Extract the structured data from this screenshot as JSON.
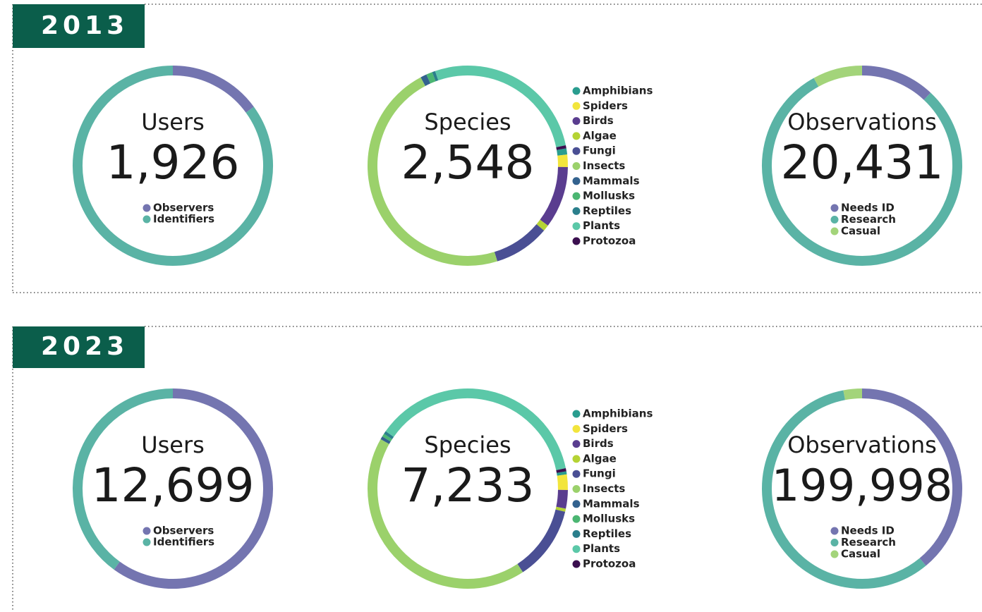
{
  "sections": [
    {
      "year": "2013"
    },
    {
      "year": "2023"
    }
  ],
  "chart_data": [
    {
      "type": "donut",
      "title": "Users",
      "total_label": "1,926",
      "categories": [
        "Observers",
        "Identifiers"
      ],
      "values": [
        15,
        85
      ],
      "colors": [
        "#7475b0",
        "#5ab3a5"
      ]
    },
    {
      "type": "donut",
      "title": "Species",
      "total_label": "2,548",
      "categories": [
        "Amphibians",
        "Spiders",
        "Birds",
        "Algae",
        "Fungi",
        "Insects",
        "Mammals",
        "Mollusks",
        "Reptiles",
        "Plants",
        "Protozoa"
      ],
      "values": [
        1,
        2,
        10,
        1,
        9,
        47,
        1,
        1,
        0.5,
        27,
        0.5
      ],
      "colors": [
        "#2a9d8f",
        "#f2e53c",
        "#5a3d8f",
        "#b5d334",
        "#4a4f94",
        "#9bd16b",
        "#33628e",
        "#4bb672",
        "#2b7f8c",
        "#5bc8a8",
        "#3b0f4f"
      ]
    },
    {
      "type": "donut",
      "title": "Observations",
      "total_label": "20,431",
      "categories": [
        "Needs ID",
        "Research",
        "Casual"
      ],
      "values": [
        12,
        80,
        8
      ],
      "colors": [
        "#7475b0",
        "#5ab3a5",
        "#a3d47a"
      ]
    },
    {
      "type": "donut",
      "title": "Users",
      "total_label": "12,699",
      "categories": [
        "Observers",
        "Identifiers"
      ],
      "values": [
        60,
        40
      ],
      "colors": [
        "#7475b0",
        "#5ab3a5"
      ]
    },
    {
      "type": "donut",
      "title": "Species",
      "total_label": "7,233",
      "categories": [
        "Amphibians",
        "Spiders",
        "Birds",
        "Algae",
        "Fungi",
        "Insects",
        "Mammals",
        "Mollusks",
        "Reptiles",
        "Plants",
        "Protozoa"
      ],
      "values": [
        0.5,
        2.5,
        3,
        0.5,
        12,
        42.5,
        0.5,
        0.5,
        0.5,
        37,
        0.5
      ],
      "colors": [
        "#2a9d8f",
        "#f2e53c",
        "#5a3d8f",
        "#b5d334",
        "#4a4f94",
        "#9bd16b",
        "#33628e",
        "#4bb672",
        "#2b7f8c",
        "#5bc8a8",
        "#3b0f4f"
      ]
    },
    {
      "type": "donut",
      "title": "Observations",
      "total_label": "199,998",
      "categories": [
        "Needs ID",
        "Research",
        "Casual"
      ],
      "values": [
        39,
        58,
        3
      ],
      "colors": [
        "#7475b0",
        "#5ab3a5",
        "#a3d47a"
      ]
    }
  ]
}
